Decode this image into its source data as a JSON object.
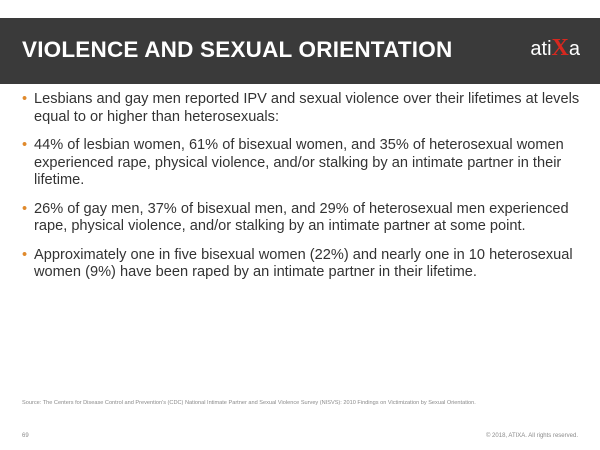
{
  "header": {
    "title": "VIOLENCE AND SEXUAL ORIENTATION",
    "logo": {
      "before": "ati",
      "mark": "X",
      "after": "a"
    }
  },
  "bullets": [
    "Lesbians and gay men reported IPV and sexual violence over their lifetimes at levels equal to or higher than heterosexuals:",
    "44% of lesbian women, 61% of bisexual women, and 35% of heterosexual women experienced rape, physical violence, and/or stalking by an intimate partner in their lifetime.",
    "26% of gay men, 37% of bisexual men, and 29% of heterosexual men experienced rape, physical violence, and/or stalking by an intimate partner at some point.",
    "Approximately one in five bisexual women (22%) and nearly one in 10 heterosexual women (9%) have been raped by an intimate partner in their lifetime."
  ],
  "source": "Source: The Centers for Disease Control and Prevention's (CDC) National Intimate Partner and Sexual Violence Survey (NISVS): 2010 Findings on Victimization by Sexual Orientation.",
  "footer": {
    "slide_number": "69",
    "copyright": "© 2018, ATIXA. All rights reserved."
  }
}
